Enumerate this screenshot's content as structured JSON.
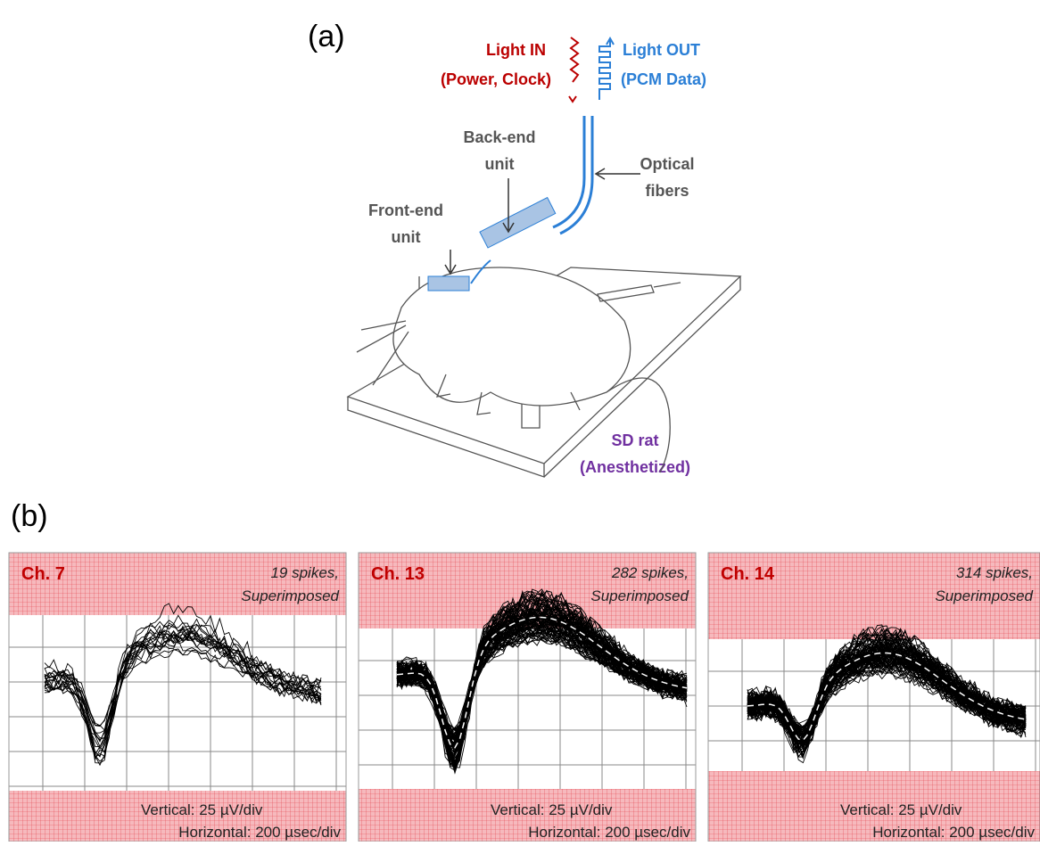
{
  "panel_a": {
    "label": "(a)",
    "light_in": [
      "Light IN",
      "(Power, Clock)"
    ],
    "light_out": [
      "Light OUT",
      "(PCM Data)"
    ],
    "back_end": [
      "Back-end",
      "unit"
    ],
    "optical": [
      "Optical",
      "fibers"
    ],
    "front_end": [
      "Front-end",
      "unit"
    ],
    "rat": [
      "SD rat",
      "(Anesthetized)"
    ]
  },
  "panel_b": {
    "label": "(b)",
    "panels": [
      {
        "channel": "Ch. 7",
        "spikes": "19 spikes,",
        "mode": "Superimposed",
        "vertical": "Vertical: 25 µV/div",
        "horizontal": "Horizontal: 200 µsec/div"
      },
      {
        "channel": "Ch. 13",
        "spikes": "282 spikes,",
        "mode": "Superimposed",
        "vertical": "Vertical: 25 µV/div",
        "horizontal": "Horizontal: 200 µsec/div"
      },
      {
        "channel": "Ch. 14",
        "spikes": "314 spikes,",
        "mode": "Superimposed",
        "vertical": "Vertical: 25 µV/div",
        "horizontal": "Horizontal: 200 µsec/div"
      }
    ]
  }
}
